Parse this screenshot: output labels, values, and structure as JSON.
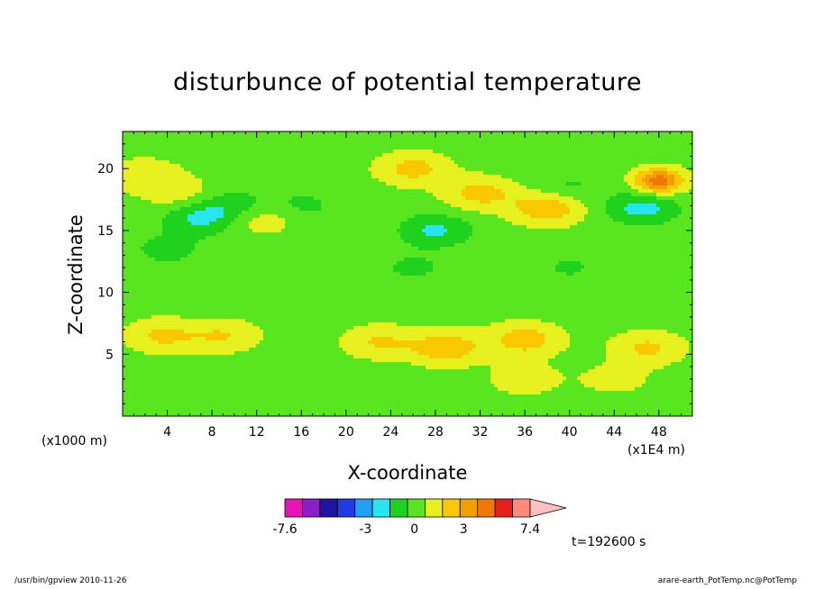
{
  "chart_data": {
    "type": "heatmap",
    "title": "disturbunce of potential temperature",
    "xlabel": "X-coordinate",
    "ylabel": "Z-coordinate",
    "x_unit": "(x1E4 m)",
    "z_unit": "(x1000 m)",
    "xlim": [
      0,
      51
    ],
    "ylim": [
      0,
      23
    ],
    "x_ticks": [
      4,
      8,
      12,
      16,
      20,
      24,
      28,
      32,
      36,
      40,
      44,
      48
    ],
    "y_ticks": [
      5,
      10,
      15,
      20
    ],
    "colorbar": {
      "min": -7.6,
      "max": 7.4,
      "tick_labels": [
        "-7.6",
        "-3",
        "0",
        "3",
        "7.4"
      ],
      "colors": [
        "#e614b4",
        "#8c1ec8",
        "#1e14a0",
        "#1e3ce6",
        "#20a0f0",
        "#28e6f0",
        "#1ed21e",
        "#5ae61e",
        "#e6f01e",
        "#fac800",
        "#f0a000",
        "#f07800",
        "#e61e1e",
        "#ff8a7a",
        "#ffc0c0"
      ]
    },
    "background_anomaly": 0,
    "features": [
      {
        "x": 23.0,
        "z": 6.0,
        "value": 1.5
      },
      {
        "x": 29.0,
        "z": 5.5,
        "value": 2.2
      },
      {
        "x": 36.0,
        "z": 6.2,
        "value": 2.0
      },
      {
        "x": 47.0,
        "z": 5.5,
        "value": 1.6
      },
      {
        "x": 36.0,
        "z": 3.0,
        "value": 1.0
      },
      {
        "x": 44.0,
        "z": 3.0,
        "value": 0.8
      },
      {
        "x": 3.5,
        "z": 6.5,
        "value": 1.6
      },
      {
        "x": 9.0,
        "z": 6.5,
        "value": 1.4
      },
      {
        "x": 4.0,
        "z": 13.5,
        "value": -1.0
      },
      {
        "x": 26.0,
        "z": 12.0,
        "value": -0.8
      },
      {
        "x": 40.0,
        "z": 12.0,
        "value": -0.7
      },
      {
        "x": 40.0,
        "z": 18.5,
        "value": -0.8
      },
      {
        "x": 28.0,
        "z": 15.0,
        "value": -1.8
      },
      {
        "x": 46.5,
        "z": 16.8,
        "value": -2.0
      },
      {
        "x": 7.0,
        "z": 16.0,
        "value": -1.8
      },
      {
        "x": 10.0,
        "z": 17.0,
        "value": -1.2
      },
      {
        "x": 16.0,
        "z": 17.0,
        "value": -0.9
      },
      {
        "x": 48.0,
        "z": 19.0,
        "value": 4.0
      },
      {
        "x": 38.0,
        "z": 16.8,
        "value": 2.3
      },
      {
        "x": 32.0,
        "z": 18.0,
        "value": 1.8
      },
      {
        "x": 26.0,
        "z": 20.0,
        "value": 1.8
      },
      {
        "x": 12.5,
        "z": 16.0,
        "value": 1.2
      },
      {
        "x": 2.0,
        "z": 19.5,
        "value": 1.2
      },
      {
        "x": 5.0,
        "z": 18.0,
        "value": 1.0
      }
    ],
    "time_label": "t=192600 s"
  },
  "footer": {
    "left": "/usr/bin/gpview   2010-11-26",
    "right": "arare-earth_PotTemp.nc@PotTemp"
  }
}
